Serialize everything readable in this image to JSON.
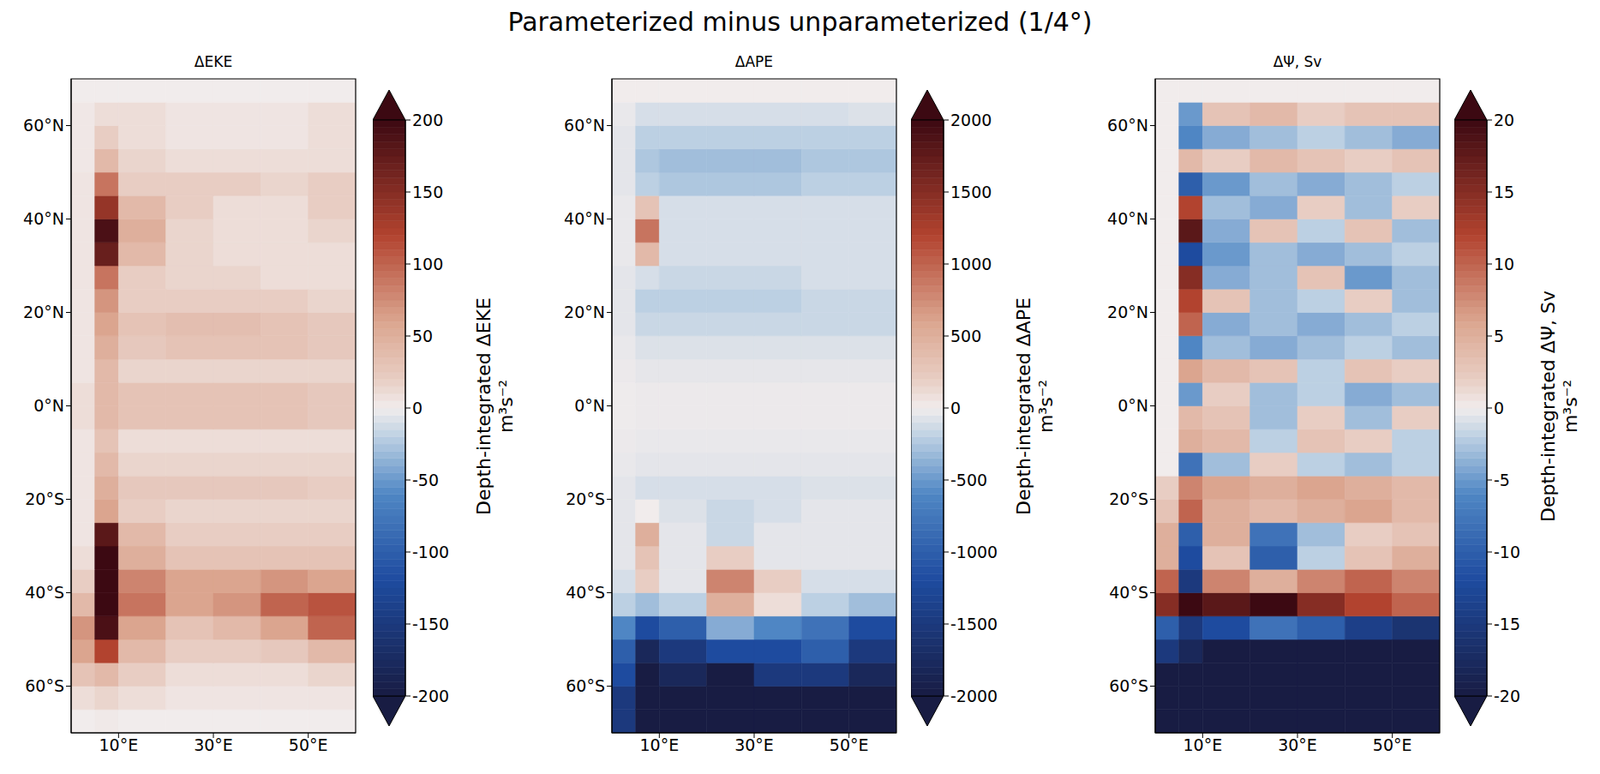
{
  "title": "Parameterized minus unparameterized (1/4°)",
  "chart_data": [
    {
      "type": "heatmap",
      "title": "ΔEKE",
      "x_edges": [
        0,
        5,
        10,
        20,
        30,
        40,
        50,
        60
      ],
      "y_edges": [
        -70,
        -65,
        -60,
        -55,
        -50,
        -45,
        -40,
        -35,
        -30,
        -25,
        -20,
        -15,
        -10,
        -5,
        0,
        5,
        10,
        15,
        20,
        25,
        30,
        35,
        40,
        45,
        50,
        55,
        60,
        65,
        70
      ],
      "cells": [
        [
          0,
          2,
          0,
          0,
          0,
          0,
          0
        ],
        [
          10,
          15,
          10,
          5,
          5,
          5,
          5
        ],
        [
          30,
          40,
          20,
          10,
          10,
          10,
          15
        ],
        [
          60,
          120,
          40,
          20,
          20,
          25,
          40
        ],
        [
          70,
          190,
          60,
          30,
          40,
          60,
          100
        ],
        [
          40,
          200,
          90,
          60,
          70,
          100,
          110
        ],
        [
          20,
          200,
          80,
          60,
          60,
          70,
          60
        ],
        [
          10,
          200,
          50,
          30,
          30,
          30,
          30
        ],
        [
          5,
          180,
          40,
          20,
          20,
          20,
          20
        ],
        [
          5,
          60,
          20,
          15,
          15,
          15,
          15
        ],
        [
          5,
          50,
          25,
          25,
          25,
          25,
          20
        ],
        [
          5,
          40,
          15,
          15,
          15,
          15,
          15
        ],
        [
          5,
          30,
          10,
          10,
          10,
          10,
          10
        ],
        [
          10,
          40,
          30,
          30,
          30,
          30,
          25
        ],
        [
          10,
          40,
          30,
          30,
          30,
          30,
          25
        ],
        [
          5,
          40,
          15,
          15,
          15,
          15,
          15
        ],
        [
          5,
          50,
          25,
          30,
          30,
          30,
          25
        ],
        [
          5,
          60,
          30,
          35,
          35,
          30,
          25
        ],
        [
          5,
          70,
          20,
          20,
          20,
          20,
          15
        ],
        [
          5,
          90,
          20,
          15,
          15,
          10,
          10
        ],
        [
          5,
          170,
          40,
          15,
          10,
          10,
          10
        ],
        [
          5,
          190,
          50,
          15,
          10,
          10,
          15
        ],
        [
          5,
          140,
          40,
          20,
          10,
          10,
          20
        ],
        [
          5,
          90,
          20,
          20,
          20,
          15,
          20
        ],
        [
          3,
          40,
          15,
          10,
          10,
          10,
          10
        ],
        [
          3,
          20,
          10,
          5,
          5,
          5,
          10
        ],
        [
          3,
          10,
          10,
          5,
          5,
          5,
          10
        ],
        [
          0,
          0,
          0,
          0,
          0,
          0,
          0
        ]
      ],
      "xlim": [
        0,
        60
      ],
      "ylim": [
        -70,
        70
      ],
      "xticks": [
        {
          "value": 10,
          "label": "10°E"
        },
        {
          "value": 30,
          "label": "30°E"
        },
        {
          "value": 50,
          "label": "50°E"
        }
      ],
      "yticks": [
        {
          "value": -60,
          "label": "60°S"
        },
        {
          "value": -40,
          "label": "40°S"
        },
        {
          "value": -20,
          "label": "20°S"
        },
        {
          "value": 0,
          "label": "0°N"
        },
        {
          "value": 20,
          "label": "20°N"
        },
        {
          "value": 40,
          "label": "40°N"
        },
        {
          "value": 60,
          "label": "60°N"
        }
      ],
      "colorbar": {
        "label": "Depth-integrated ΔEKE",
        "units": "m³s⁻²",
        "range": [
          -200,
          200
        ],
        "ticks": [
          -200,
          -150,
          -100,
          -50,
          0,
          50,
          100,
          150,
          200
        ]
      }
    },
    {
      "type": "heatmap",
      "title": "ΔAPE",
      "x_edges": [
        0,
        5,
        10,
        20,
        30,
        40,
        50,
        60
      ],
      "y_edges": [
        -70,
        -65,
        -60,
        -55,
        -50,
        -45,
        -40,
        -35,
        -30,
        -25,
        -20,
        -15,
        -10,
        -5,
        0,
        5,
        10,
        15,
        20,
        25,
        30,
        35,
        40,
        45,
        50,
        55,
        60,
        65,
        70
      ],
      "cells": [
        [
          -1500,
          -2000,
          -2000,
          -2000,
          -2000,
          -2000,
          -2000
        ],
        [
          -1500,
          -2000,
          -2000,
          -2000,
          -2000,
          -2000,
          -2000
        ],
        [
          -1200,
          -2000,
          -1800,
          -2000,
          -1500,
          -1500,
          -1800
        ],
        [
          -1000,
          -1800,
          -1500,
          -1200,
          -1200,
          -1000,
          -1500
        ],
        [
          -600,
          -1200,
          -1000,
          -400,
          -600,
          -800,
          -1200
        ],
        [
          -200,
          -300,
          -200,
          500,
          100,
          -200,
          -300
        ],
        [
          -100,
          200,
          -50,
          800,
          200,
          -100,
          -100
        ],
        [
          -50,
          300,
          -50,
          200,
          -50,
          -50,
          -50
        ],
        [
          -50,
          500,
          -50,
          -150,
          -50,
          -50,
          -50
        ],
        [
          -50,
          0,
          -80,
          -150,
          -100,
          -50,
          -50
        ],
        [
          -50,
          -100,
          -100,
          -100,
          -100,
          -80,
          -80
        ],
        [
          -30,
          -50,
          -50,
          -50,
          -50,
          -50,
          -50
        ],
        [
          -20,
          -30,
          -30,
          -30,
          -30,
          -30,
          -30
        ],
        [
          -10,
          -20,
          -20,
          -20,
          -20,
          -20,
          -20
        ],
        [
          -10,
          -20,
          -20,
          -20,
          -20,
          -20,
          -20
        ],
        [
          -20,
          -40,
          -40,
          -40,
          -40,
          -40,
          -40
        ],
        [
          -30,
          -80,
          -80,
          -80,
          -80,
          -80,
          -80
        ],
        [
          -50,
          -150,
          -150,
          -150,
          -150,
          -150,
          -150
        ],
        [
          -50,
          -200,
          -200,
          -200,
          -200,
          -150,
          -150
        ],
        [
          -50,
          -100,
          -150,
          -150,
          -150,
          -100,
          -100
        ],
        [
          -30,
          400,
          -100,
          -100,
          -100,
          -100,
          -100
        ],
        [
          -30,
          900,
          -100,
          -100,
          -100,
          -100,
          -100
        ],
        [
          -30,
          300,
          -100,
          -100,
          -100,
          -100,
          -100
        ],
        [
          -50,
          -200,
          -250,
          -250,
          -250,
          -200,
          -200
        ],
        [
          -50,
          -250,
          -300,
          -300,
          -300,
          -250,
          -250
        ],
        [
          -50,
          -200,
          -200,
          -200,
          -200,
          -200,
          -200
        ],
        [
          -30,
          -100,
          -100,
          -100,
          -100,
          -100,
          -80
        ],
        [
          0,
          0,
          0,
          0,
          0,
          0,
          0
        ]
      ],
      "xlim": [
        0,
        60
      ],
      "ylim": [
        -70,
        70
      ],
      "xticks": [
        {
          "value": 10,
          "label": "10°E"
        },
        {
          "value": 30,
          "label": "30°E"
        },
        {
          "value": 50,
          "label": "50°E"
        }
      ],
      "yticks": [
        {
          "value": -60,
          "label": "60°S"
        },
        {
          "value": -40,
          "label": "40°S"
        },
        {
          "value": -20,
          "label": "20°S"
        },
        {
          "value": 0,
          "label": "0°N"
        },
        {
          "value": 20,
          "label": "20°N"
        },
        {
          "value": 40,
          "label": "40°N"
        },
        {
          "value": 60,
          "label": "60°N"
        }
      ],
      "colorbar": {
        "label": "Depth-integrated ΔAPE",
        "units": "m³s⁻²",
        "range": [
          -2000,
          2000
        ],
        "ticks": [
          -2000,
          -1500,
          -1000,
          -500,
          0,
          500,
          1000,
          1500,
          2000
        ]
      }
    },
    {
      "type": "heatmap",
      "title": "ΔΨ, Sv",
      "x_edges": [
        0,
        5,
        10,
        20,
        30,
        40,
        50,
        60
      ],
      "y_edges": [
        -70,
        -65,
        -60,
        -55,
        -50,
        -45,
        -40,
        -35,
        -30,
        -25,
        -20,
        -15,
        -10,
        -5,
        0,
        5,
        10,
        15,
        20,
        25,
        30,
        35,
        40,
        45,
        50,
        55,
        60,
        65,
        70
      ],
      "cells": [
        [
          -20,
          -20,
          -20,
          -20,
          -20,
          -20,
          -20
        ],
        [
          -20,
          -20,
          -20,
          -20,
          -20,
          -20,
          -20
        ],
        [
          -20,
          -20,
          -20,
          -20,
          -20,
          -20,
          -20
        ],
        [
          -15,
          -18,
          -20,
          -20,
          -20,
          -20,
          -20
        ],
        [
          -10,
          -15,
          -12,
          -8,
          -10,
          -14,
          -16
        ],
        [
          15,
          20,
          18,
          20,
          15,
          12,
          10
        ],
        [
          10,
          -15,
          8,
          5,
          8,
          10,
          8
        ],
        [
          5,
          -12,
          3,
          -10,
          -2,
          3,
          5
        ],
        [
          5,
          -10,
          5,
          -8,
          -3,
          2,
          3
        ],
        [
          3,
          10,
          5,
          4,
          5,
          6,
          4
        ],
        [
          2,
          8,
          6,
          5,
          6,
          5,
          4
        ],
        [
          0,
          -8,
          -3,
          2,
          -2,
          -3,
          -2
        ],
        [
          0,
          5,
          4,
          -2,
          3,
          2,
          -2
        ],
        [
          0,
          4,
          3,
          -3,
          2,
          -3,
          2
        ],
        [
          0,
          -5,
          2,
          -3,
          -2,
          -4,
          -3
        ],
        [
          0,
          6,
          4,
          3,
          -2,
          3,
          2
        ],
        [
          0,
          -6,
          -3,
          -4,
          -3,
          -2,
          -3
        ],
        [
          0,
          10,
          -4,
          -3,
          -4,
          -3,
          -2
        ],
        [
          0,
          12,
          3,
          -3,
          -2,
          2,
          -3
        ],
        [
          0,
          15,
          -4,
          -3,
          3,
          -5,
          -3
        ],
        [
          0,
          -12,
          -5,
          -3,
          -4,
          -3,
          -2
        ],
        [
          0,
          18,
          -4,
          3,
          -2,
          3,
          -3
        ],
        [
          0,
          12,
          -3,
          -4,
          2,
          -3,
          2
        ],
        [
          0,
          -10,
          -5,
          -3,
          -4,
          -3,
          -2
        ],
        [
          0,
          4,
          2,
          4,
          3,
          2,
          3
        ],
        [
          0,
          -6,
          -4,
          -3,
          -2,
          -3,
          -4
        ],
        [
          0,
          -5,
          3,
          4,
          2,
          3,
          3
        ],
        [
          0,
          0,
          0,
          0,
          0,
          0,
          0
        ]
      ],
      "xlim": [
        0,
        60
      ],
      "ylim": [
        -70,
        70
      ],
      "xticks": [
        {
          "value": 10,
          "label": "10°E"
        },
        {
          "value": 30,
          "label": "30°E"
        },
        {
          "value": 50,
          "label": "50°E"
        }
      ],
      "yticks": [
        {
          "value": -60,
          "label": "60°S"
        },
        {
          "value": -40,
          "label": "40°S"
        },
        {
          "value": -20,
          "label": "20°S"
        },
        {
          "value": 0,
          "label": "0°N"
        },
        {
          "value": 20,
          "label": "20°N"
        },
        {
          "value": 40,
          "label": "40°N"
        },
        {
          "value": 60,
          "label": "60°N"
        }
      ],
      "colorbar": {
        "label": "Depth-integrated ΔΨ, Sv",
        "units": "m³s⁻²",
        "range": [
          -20,
          20
        ],
        "ticks": [
          -20,
          -15,
          -10,
          -5,
          0,
          5,
          10,
          15,
          20
        ]
      }
    }
  ]
}
